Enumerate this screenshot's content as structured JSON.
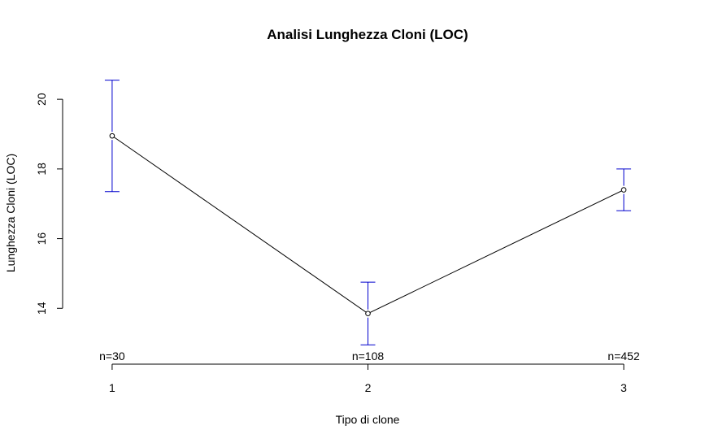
{
  "chart_data": {
    "type": "line",
    "title": "Analisi Lunghezza Cloni (LOC)",
    "xlabel": "Tipo di clone",
    "ylabel": "Lunghezza Cloni (LOC)",
    "x": [
      1,
      2,
      3
    ],
    "x_tick_labels": [
      "1",
      "2",
      "3"
    ],
    "y_ticks": [
      14,
      16,
      18,
      20
    ],
    "y_tick_labels": [
      "14",
      "16",
      "18",
      "20"
    ],
    "ylim": [
      12.7,
      21.1
    ],
    "xlim": [
      0.8,
      3.2
    ],
    "series": [
      {
        "values": [
          18.95,
          13.85,
          17.4
        ],
        "ci_lower": [
          17.35,
          12.95,
          16.8
        ],
        "ci_upper": [
          20.55,
          14.75,
          18.0
        ]
      }
    ],
    "n_labels": [
      "n=30",
      "n=108",
      "n=452"
    ],
    "grid": false,
    "colors": {
      "line": "#000000",
      "error_bars": "#0000cd",
      "points": "#000000"
    }
  }
}
